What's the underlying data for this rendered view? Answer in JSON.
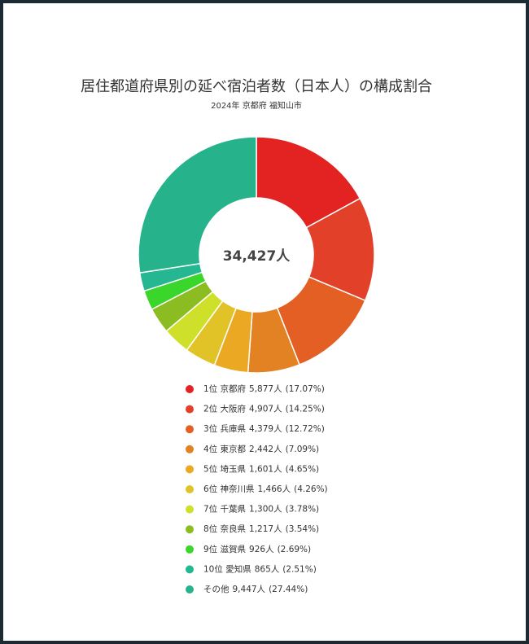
{
  "chart_data": {
    "type": "donut",
    "title": "居住都道府県別の延べ宿泊者数（日本人）の構成割合",
    "subtitle": "2024年 京都府 福知山市",
    "total": 34427,
    "total_label": "34,427人",
    "categories": [
      "1位 京都府",
      "2位 大阪府",
      "3位 兵庫県",
      "4位 東京都",
      "5位 埼玉県",
      "6位 神奈川県",
      "7位 千葉県",
      "8位 奈良県",
      "9位 滋賀県",
      "10位 愛知県",
      "その他"
    ],
    "values": [
      5877,
      4907,
      4379,
      2442,
      1601,
      1466,
      1300,
      1217,
      926,
      865,
      9447
    ],
    "value_labels": [
      "5,877人",
      "4,907人",
      "4,379人",
      "2,442人",
      "1,601人",
      "1,466人",
      "1,300人",
      "1,217人",
      "926人",
      "865人",
      "9,447人"
    ],
    "shares": [
      17.07,
      14.25,
      12.72,
      7.09,
      4.65,
      4.26,
      3.78,
      3.54,
      2.69,
      2.51,
      27.44
    ],
    "share_labels": [
      "(17.07%)",
      "(14.25%)",
      "(12.72%)",
      "(7.09%)",
      "(4.65%)",
      "(4.26%)",
      "(3.78%)",
      "(3.54%)",
      "(2.69%)",
      "(2.51%)",
      "(27.44%)"
    ],
    "colors": [
      "#e32222",
      "#e3402a",
      "#e35f24",
      "#e38222",
      "#eba823",
      "#e2c327",
      "#cfe02a",
      "#8bbd22",
      "#3ad62b",
      "#25b792",
      "#26b38c"
    ]
  }
}
